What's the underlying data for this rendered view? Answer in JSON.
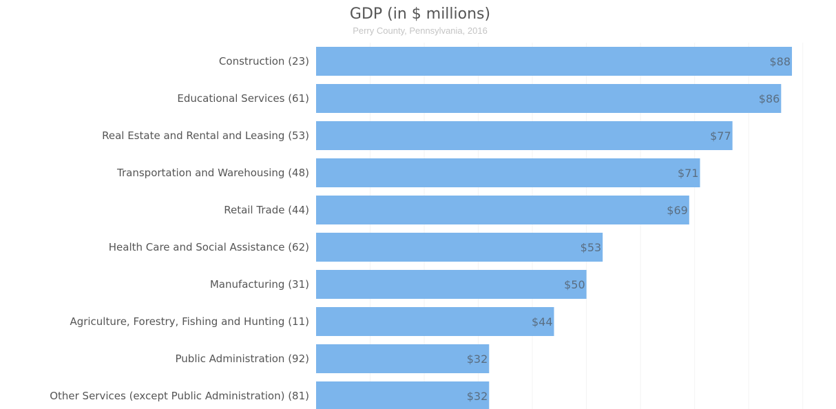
{
  "chart_data": {
    "type": "bar",
    "orientation": "horizontal",
    "title": "GDP (in $ millions)",
    "subtitle": "Perry County, Pennsylvania, 2016",
    "xlabel": "",
    "ylabel": "",
    "categories": [
      "Construction (23)",
      "Educational Services (61)",
      "Real Estate and Rental and Leasing (53)",
      "Transportation and Warehousing (48)",
      "Retail Trade (44)",
      "Health Care and Social Assistance (62)",
      "Manufacturing (31)",
      "Agriculture, Forestry, Fishing and Hunting (11)",
      "Public Administration (92)",
      "Other Services (except Public Administration) (81)"
    ],
    "values": [
      88,
      86,
      77,
      71,
      69,
      53,
      50,
      44,
      32,
      32
    ],
    "value_labels": [
      "$88",
      "$86",
      "$77",
      "$71",
      "$69",
      "$53",
      "$50",
      "$44",
      "$32",
      "$32"
    ],
    "xlim": [
      0,
      95
    ],
    "grid": true,
    "legend": "none",
    "bar_color": "#7cb5ec"
  }
}
